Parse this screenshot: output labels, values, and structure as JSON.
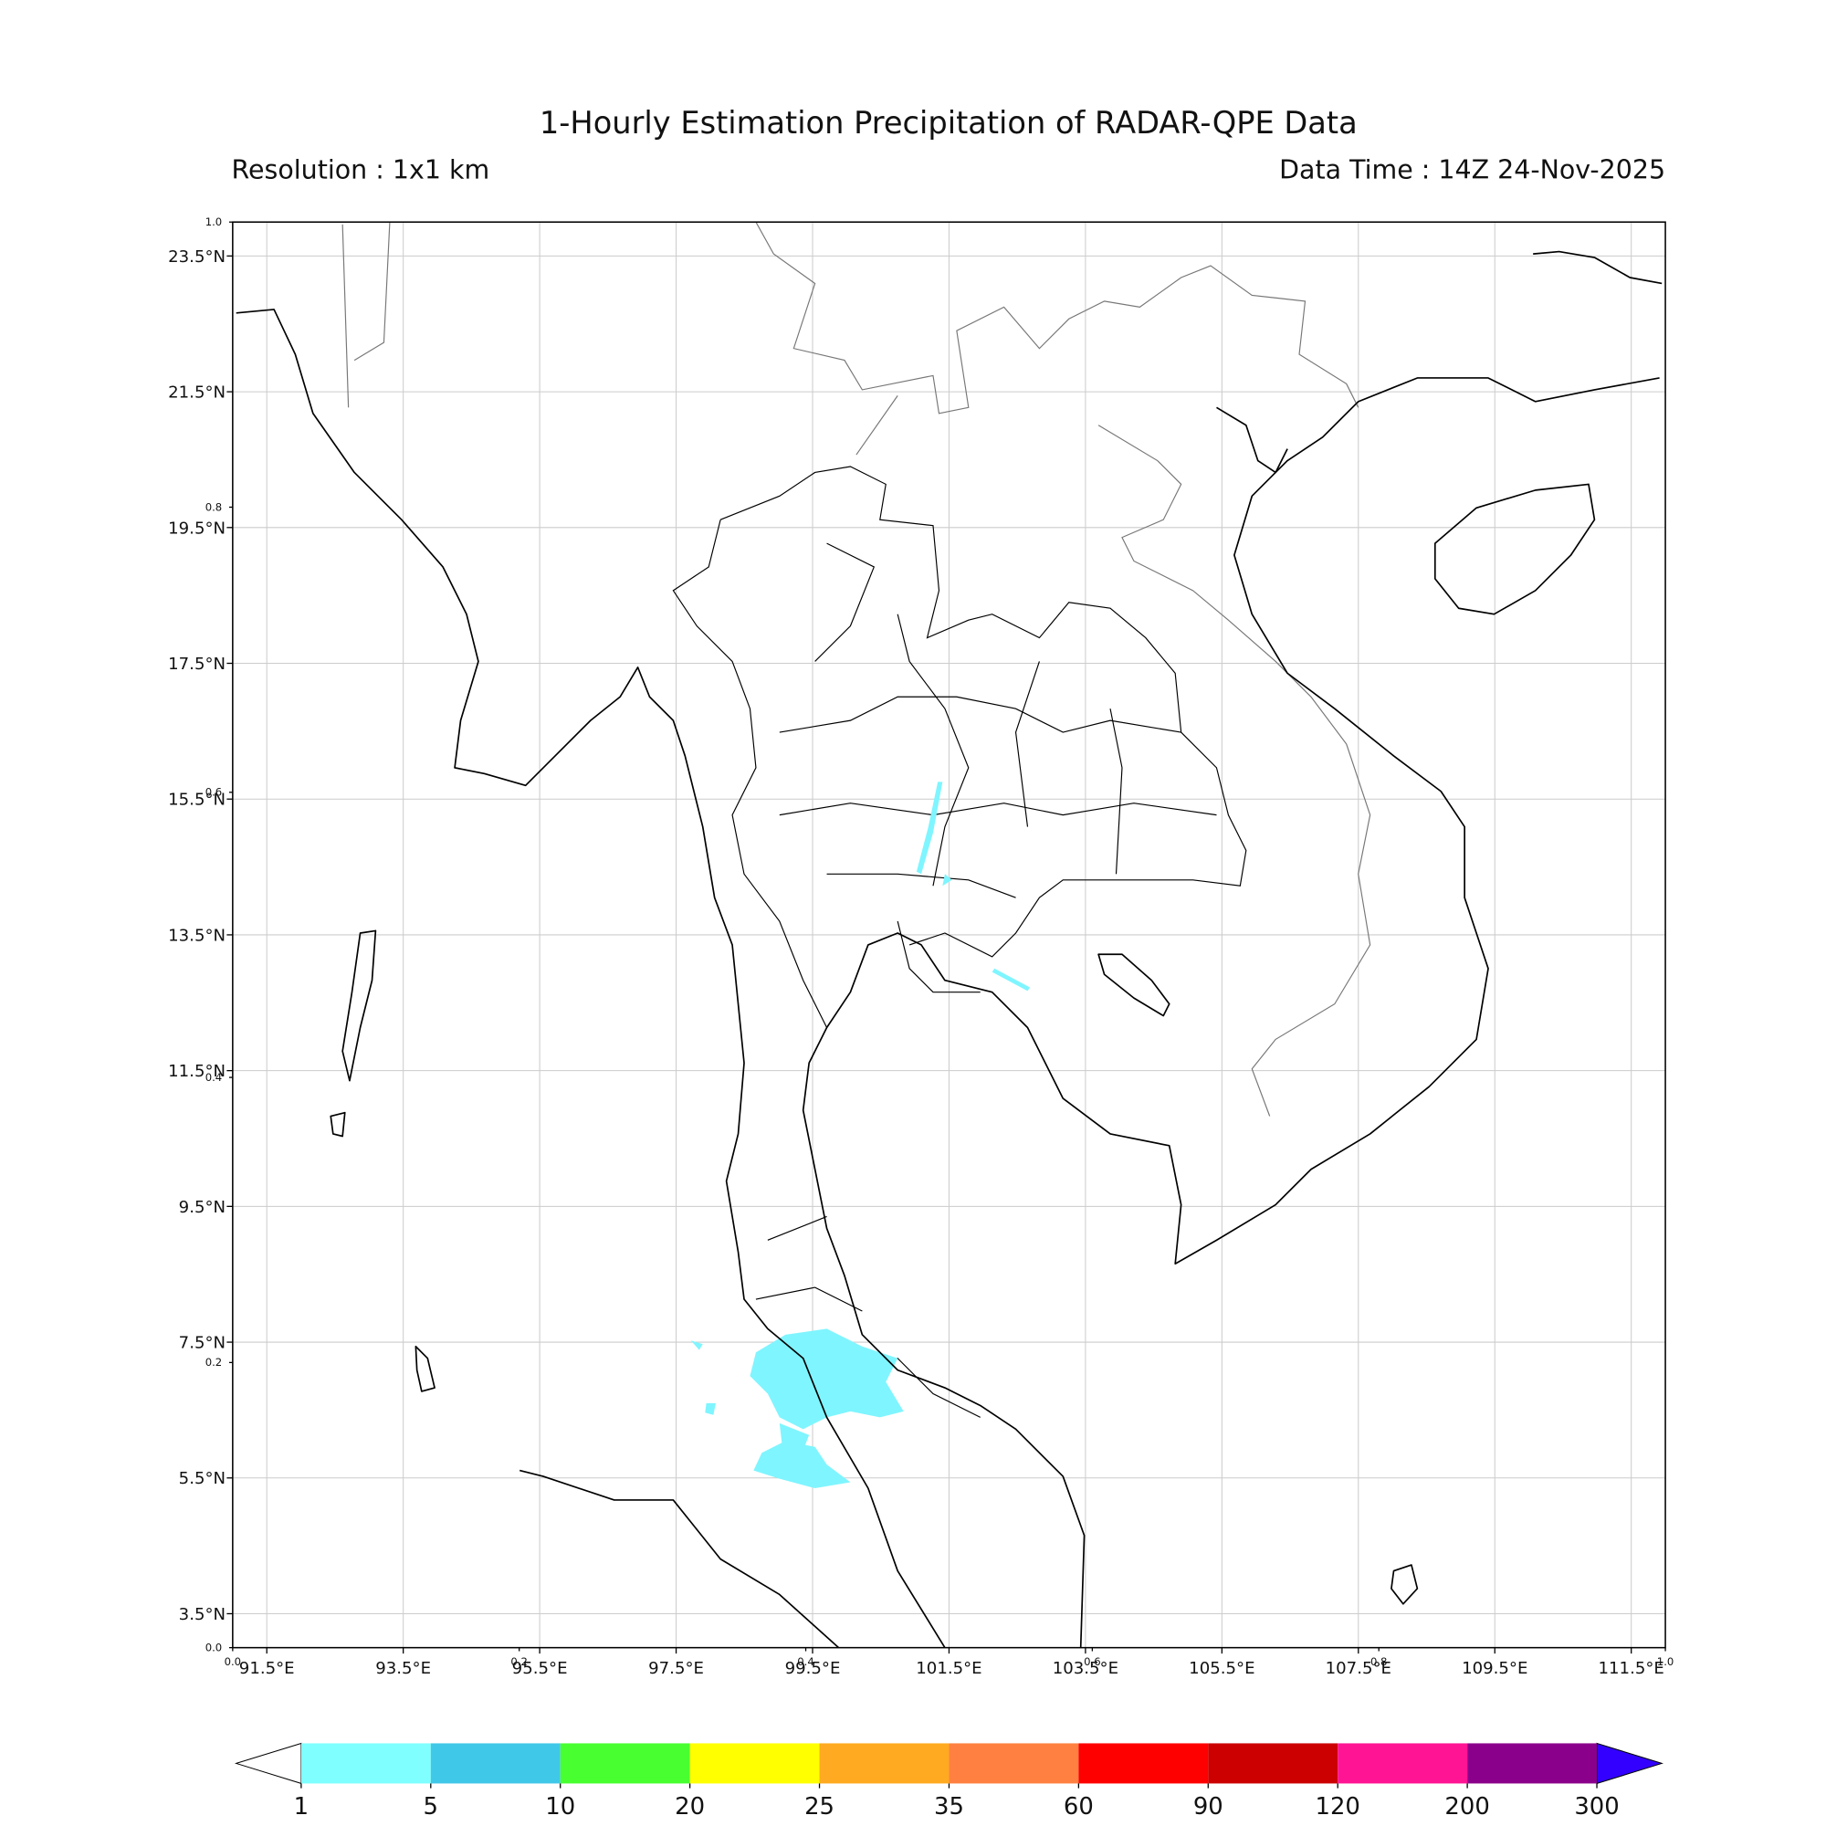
{
  "header": {
    "title": "1-Hourly Estimation Precipitation of RADAR-QPE Data",
    "resolution": "Resolution : 1x1 km",
    "data_time": "Data Time : 14Z 24-Nov-2025"
  },
  "map": {
    "lonlim": [
      91,
      112
    ],
    "latlim": [
      3,
      24
    ],
    "grid": true,
    "lon_ticks": [
      {
        "value": 91.5,
        "label": "91.5°E"
      },
      {
        "value": 93.5,
        "label": "93.5°E"
      },
      {
        "value": 95.5,
        "label": "95.5°E"
      },
      {
        "value": 97.5,
        "label": "97.5°E"
      },
      {
        "value": 99.5,
        "label": "99.5°E"
      },
      {
        "value": 101.5,
        "label": "101.5°E"
      },
      {
        "value": 103.5,
        "label": "103.5°E"
      },
      {
        "value": 105.5,
        "label": "105.5°E"
      },
      {
        "value": 107.5,
        "label": "107.5°E"
      },
      {
        "value": 109.5,
        "label": "109.5°E"
      },
      {
        "value": 111.5,
        "label": "111.5°E"
      }
    ],
    "lat_ticks": [
      {
        "value": 23.5,
        "label": "23.5°N"
      },
      {
        "value": 21.5,
        "label": "21.5°N"
      },
      {
        "value": 19.5,
        "label": "19.5°N"
      },
      {
        "value": 17.5,
        "label": "17.5°N"
      },
      {
        "value": 15.5,
        "label": "15.5°N"
      },
      {
        "value": 13.5,
        "label": "13.5°N"
      },
      {
        "value": 11.5,
        "label": "11.5°N"
      },
      {
        "value": 9.5,
        "label": "9.5°N"
      },
      {
        "value": 7.5,
        "label": "7.5°N"
      },
      {
        "value": 5.5,
        "label": "5.5°N"
      },
      {
        "value": 3.5,
        "label": "3.5°N"
      }
    ],
    "overlay_ticks": [
      {
        "value": 0,
        "label": "0.0"
      },
      {
        "value": 0.2,
        "label": "0.2"
      },
      {
        "value": 0.4,
        "label": "0.4"
      },
      {
        "value": 0.6,
        "label": "0.6"
      },
      {
        "value": 0.8,
        "label": "0.8"
      },
      {
        "value": 1,
        "label": "1.0"
      }
    ]
  },
  "colorbar": {
    "levels": [
      1,
      5,
      10,
      20,
      25,
      35,
      60,
      90,
      120,
      200,
      300
    ],
    "colors": [
      "#7fffff",
      "#40c8e8",
      "#48ff30",
      "#ffff00",
      "#ffaa20",
      "#ff8040",
      "#ff0000",
      "#cc0000",
      "#ff1493",
      "#8b008b"
    ],
    "extend_min_color": "#ffffff",
    "extend_max_color": "#3300ff"
  }
}
